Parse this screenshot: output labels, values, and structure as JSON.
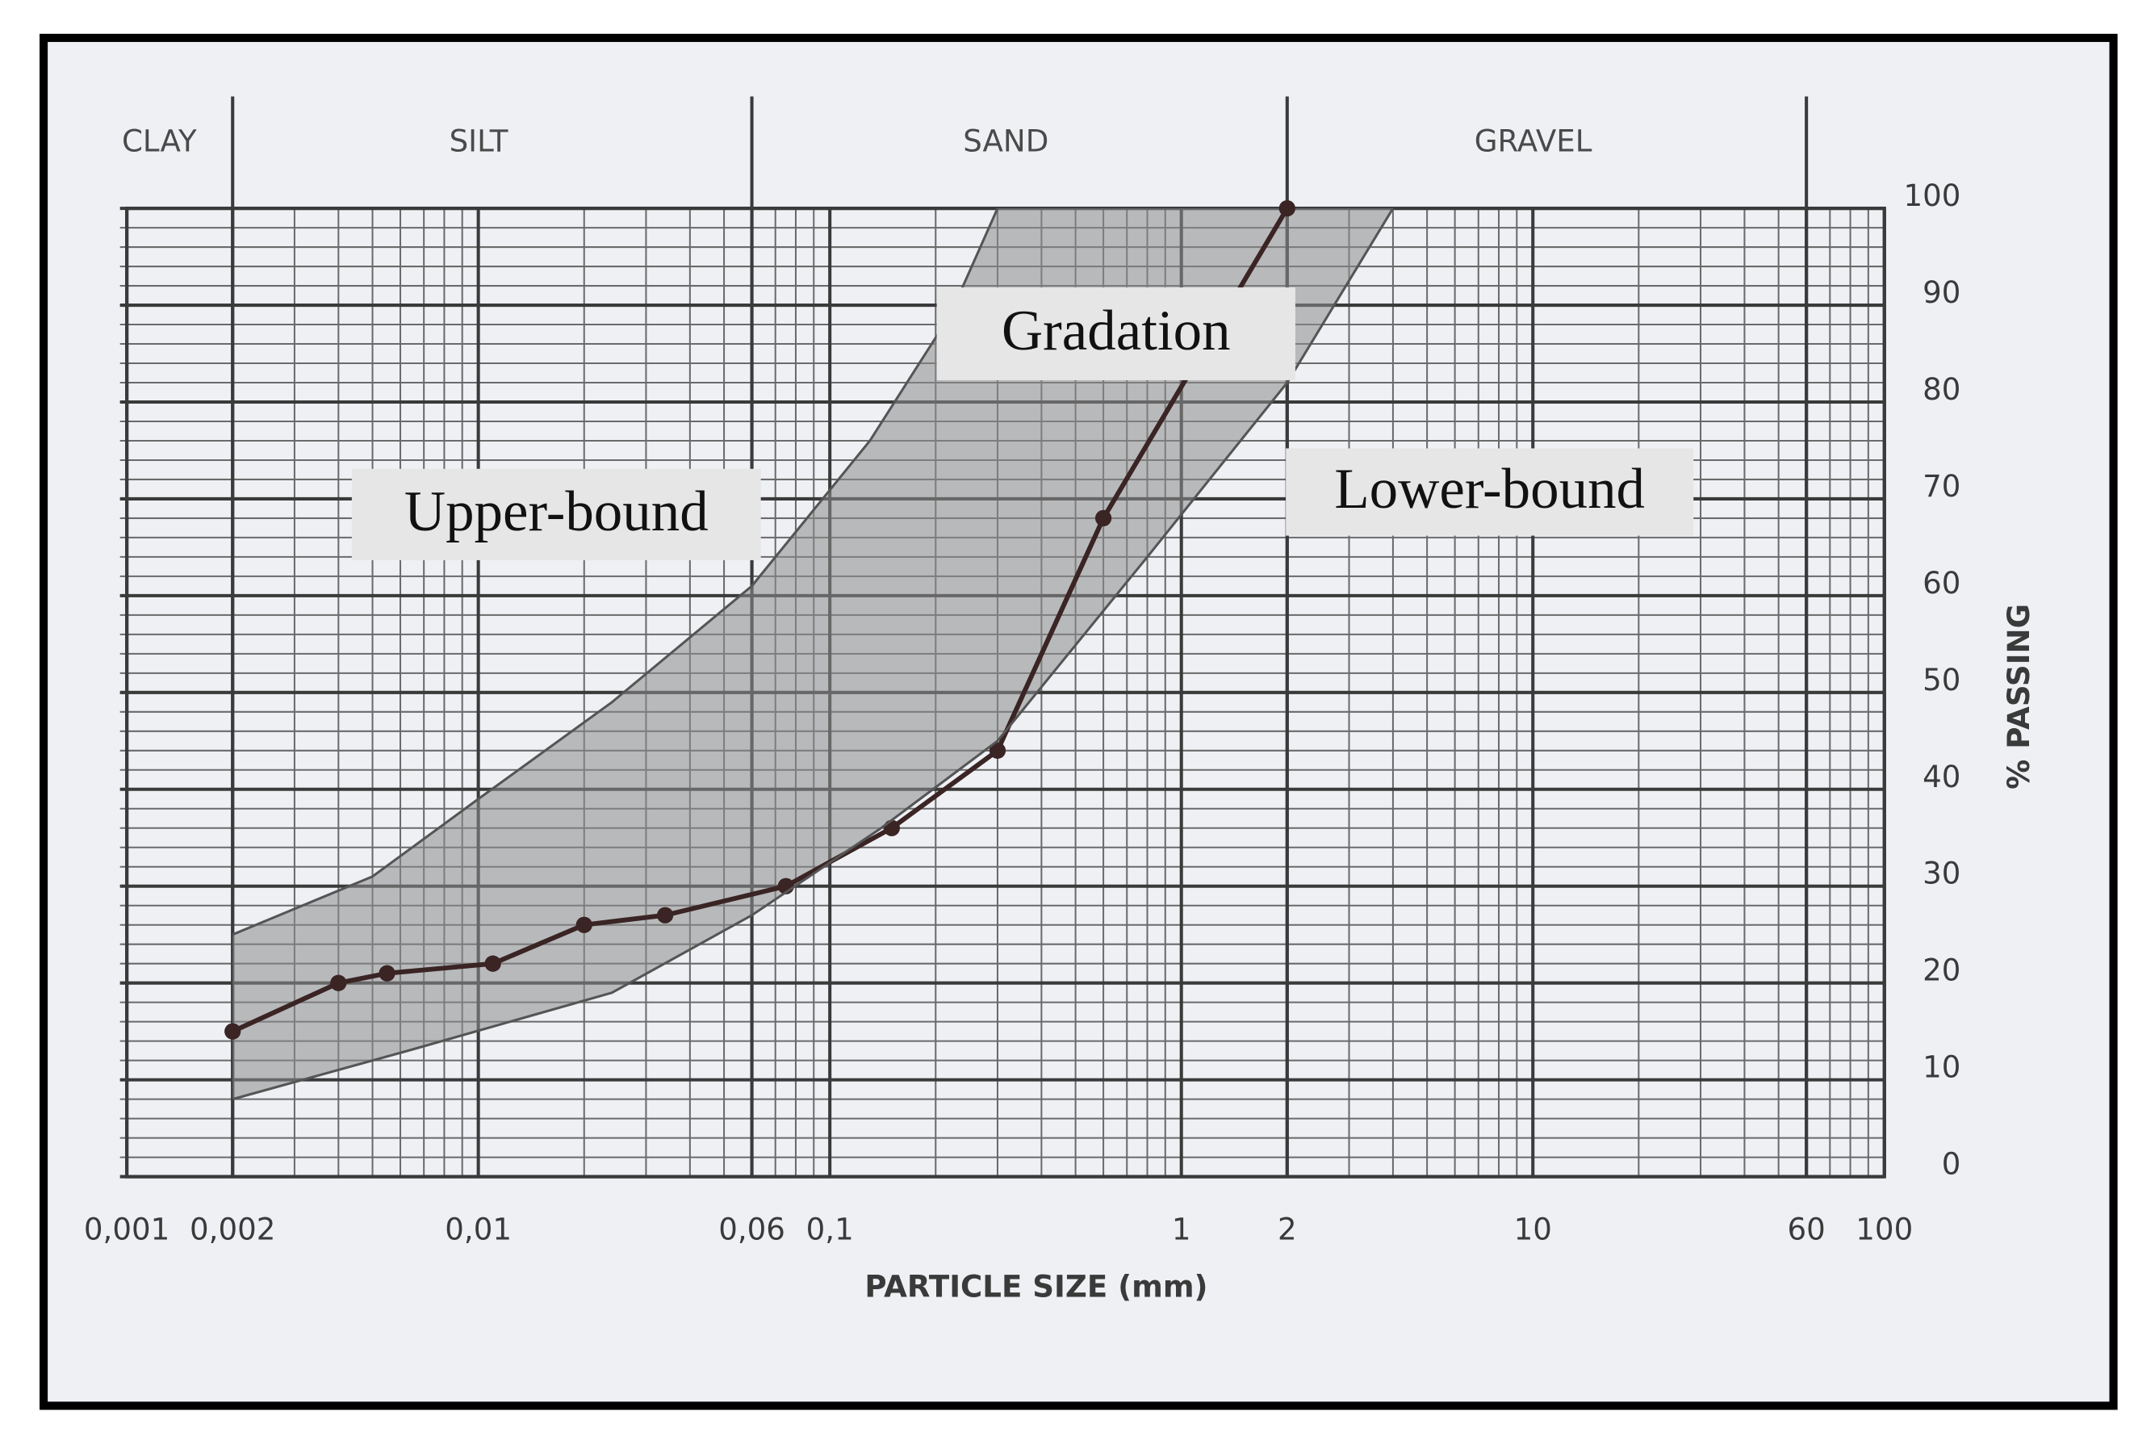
{
  "chart_data": {
    "type": "line",
    "xlabel": "PARTICLE SIZE (mm)",
    "ylabel": "% PASSING",
    "xscale": "log",
    "xlim": [
      0.001,
      100
    ],
    "ylim": [
      0,
      100
    ],
    "xticks": [
      {
        "value": 0.001,
        "label": "0,001"
      },
      {
        "value": 0.002,
        "label": "0,002"
      },
      {
        "value": 0.01,
        "label": "0,01"
      },
      {
        "value": 0.06,
        "label": "0,06"
      },
      {
        "value": 0.1,
        "label": "0,1"
      },
      1,
      2,
      10,
      60,
      100
    ],
    "yticks": [
      0,
      10,
      20,
      30,
      40,
      50,
      60,
      70,
      80,
      90,
      100
    ],
    "grid": true,
    "minor_grid": true,
    "zones": [
      "CLAY",
      "SILT",
      "SAND",
      "GRAVEL"
    ],
    "zone_bounds": [
      0.002,
      0.06,
      2,
      60
    ],
    "band_fill": "#8c8c8c",
    "series": [
      {
        "name": "Gradation",
        "color": "#3a2424",
        "x": [
          0.002,
          0.004,
          0.0055,
          0.011,
          0.02,
          0.034,
          0.075,
          0.15,
          0.3,
          0.6,
          2
        ],
        "values": [
          15,
          20,
          21,
          22,
          26,
          27,
          30,
          36,
          44,
          68,
          100
        ]
      },
      {
        "name": "Upper-bound",
        "color": "#555555",
        "x": [
          0.002,
          0.005,
          0.01,
          0.024,
          0.06,
          0.13,
          0.22,
          0.3
        ],
        "values": [
          25,
          31,
          39,
          49,
          61,
          76,
          89,
          100
        ]
      },
      {
        "name": "Lower-bound",
        "color": "#555555",
        "x": [
          0.002,
          0.0063,
          0.024,
          0.06,
          0.14,
          0.3,
          0.8,
          2,
          4
        ],
        "values": [
          8,
          13,
          19,
          27,
          36,
          45,
          64,
          82,
          100
        ]
      }
    ]
  }
}
